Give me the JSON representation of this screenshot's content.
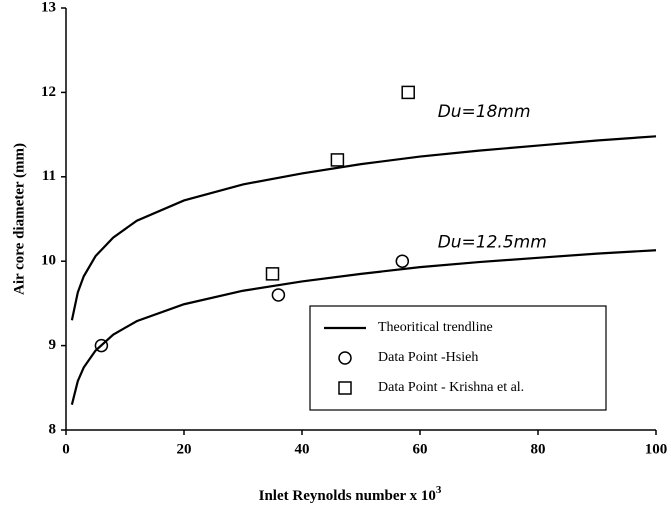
{
  "chart_data": {
    "type": "line",
    "x_label": "Inlet Reynolds number x 10",
    "x_label_superscript": "3",
    "y_label": "Air core diameter (mm)",
    "annotations": [
      "Du=18mm",
      "Du=12.5mm"
    ],
    "xlim": [
      0,
      100
    ],
    "xticks": [
      0,
      20,
      40,
      60,
      80,
      100
    ],
    "ylim": [
      8,
      13
    ],
    "yticks": [
      8,
      9,
      10,
      11,
      12,
      13
    ],
    "legend": "lower right",
    "series": [
      {
        "name": "Theoritical trendline",
        "kind": "line",
        "color": "#000000",
        "x": [
          1,
          2,
          3,
          5,
          8,
          12,
          20,
          30,
          40,
          50,
          60,
          70,
          80,
          90,
          100
        ],
        "values": [
          9.3,
          9.63,
          9.82,
          10.06,
          10.28,
          10.48,
          10.72,
          10.91,
          11.04,
          11.15,
          11.24,
          11.31,
          11.37,
          11.43,
          11.48
        ]
      },
      {
        "kind": "line",
        "color": "#000000",
        "x": [
          1,
          2,
          3,
          5,
          8,
          12,
          20,
          30,
          40,
          50,
          60,
          70,
          80,
          90,
          100
        ],
        "values": [
          8.3,
          8.58,
          8.74,
          8.94,
          9.13,
          9.29,
          9.49,
          9.65,
          9.76,
          9.85,
          9.93,
          9.99,
          10.04,
          10.09,
          10.13
        ]
      },
      {
        "name": "Data Point -Hsieh",
        "kind": "circle",
        "color": "#000000",
        "x": [
          6,
          36,
          57
        ],
        "values": [
          9.0,
          9.6,
          10.0
        ]
      },
      {
        "name": "Data Point - Krishna et al.",
        "kind": "square",
        "color": "#000000",
        "x": [
          35,
          46,
          58
        ],
        "values": [
          9.85,
          11.2,
          12.0
        ]
      }
    ]
  }
}
